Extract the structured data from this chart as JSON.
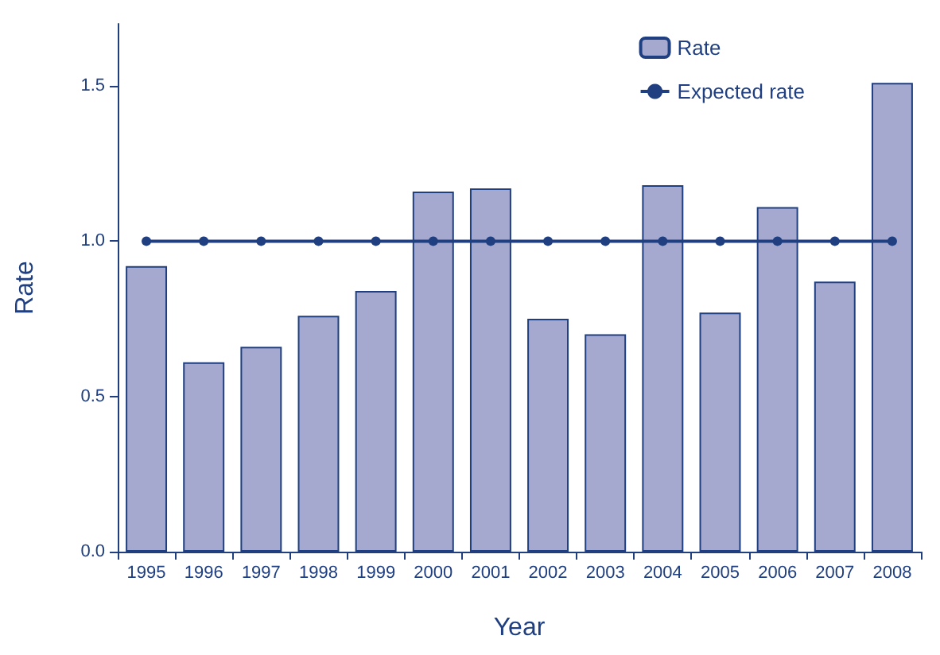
{
  "chart_data": {
    "type": "bar",
    "xlabel": "Year",
    "ylabel": "Rate",
    "categories": [
      "1995",
      "1996",
      "1997",
      "1998",
      "1999",
      "2000",
      "2001",
      "2002",
      "2003",
      "2004",
      "2005",
      "2006",
      "2007",
      "2008"
    ],
    "series": [
      {
        "name": "Rate",
        "color": "#a5a9cf",
        "values": [
          0.92,
          0.61,
          0.66,
          0.76,
          0.84,
          1.16,
          1.17,
          0.75,
          0.7,
          1.18,
          0.77,
          1.11,
          0.87,
          1.51
        ]
      },
      {
        "name": "Expected rate",
        "type": "line",
        "color": "#1f3f80",
        "marker": "circle",
        "values": [
          1,
          1,
          1,
          1,
          1,
          1,
          1,
          1,
          1,
          1,
          1,
          1,
          1,
          1
        ]
      }
    ],
    "ylim": [
      0,
      1.7
    ],
    "yticks": [
      {
        "value": 0,
        "label": "0.0"
      },
      {
        "value": 0.5,
        "label": "0.5"
      },
      {
        "value": 1,
        "label": "1.0"
      },
      {
        "value": 1.5,
        "label": "1.5"
      }
    ],
    "grid": false,
    "legend": "top right"
  }
}
